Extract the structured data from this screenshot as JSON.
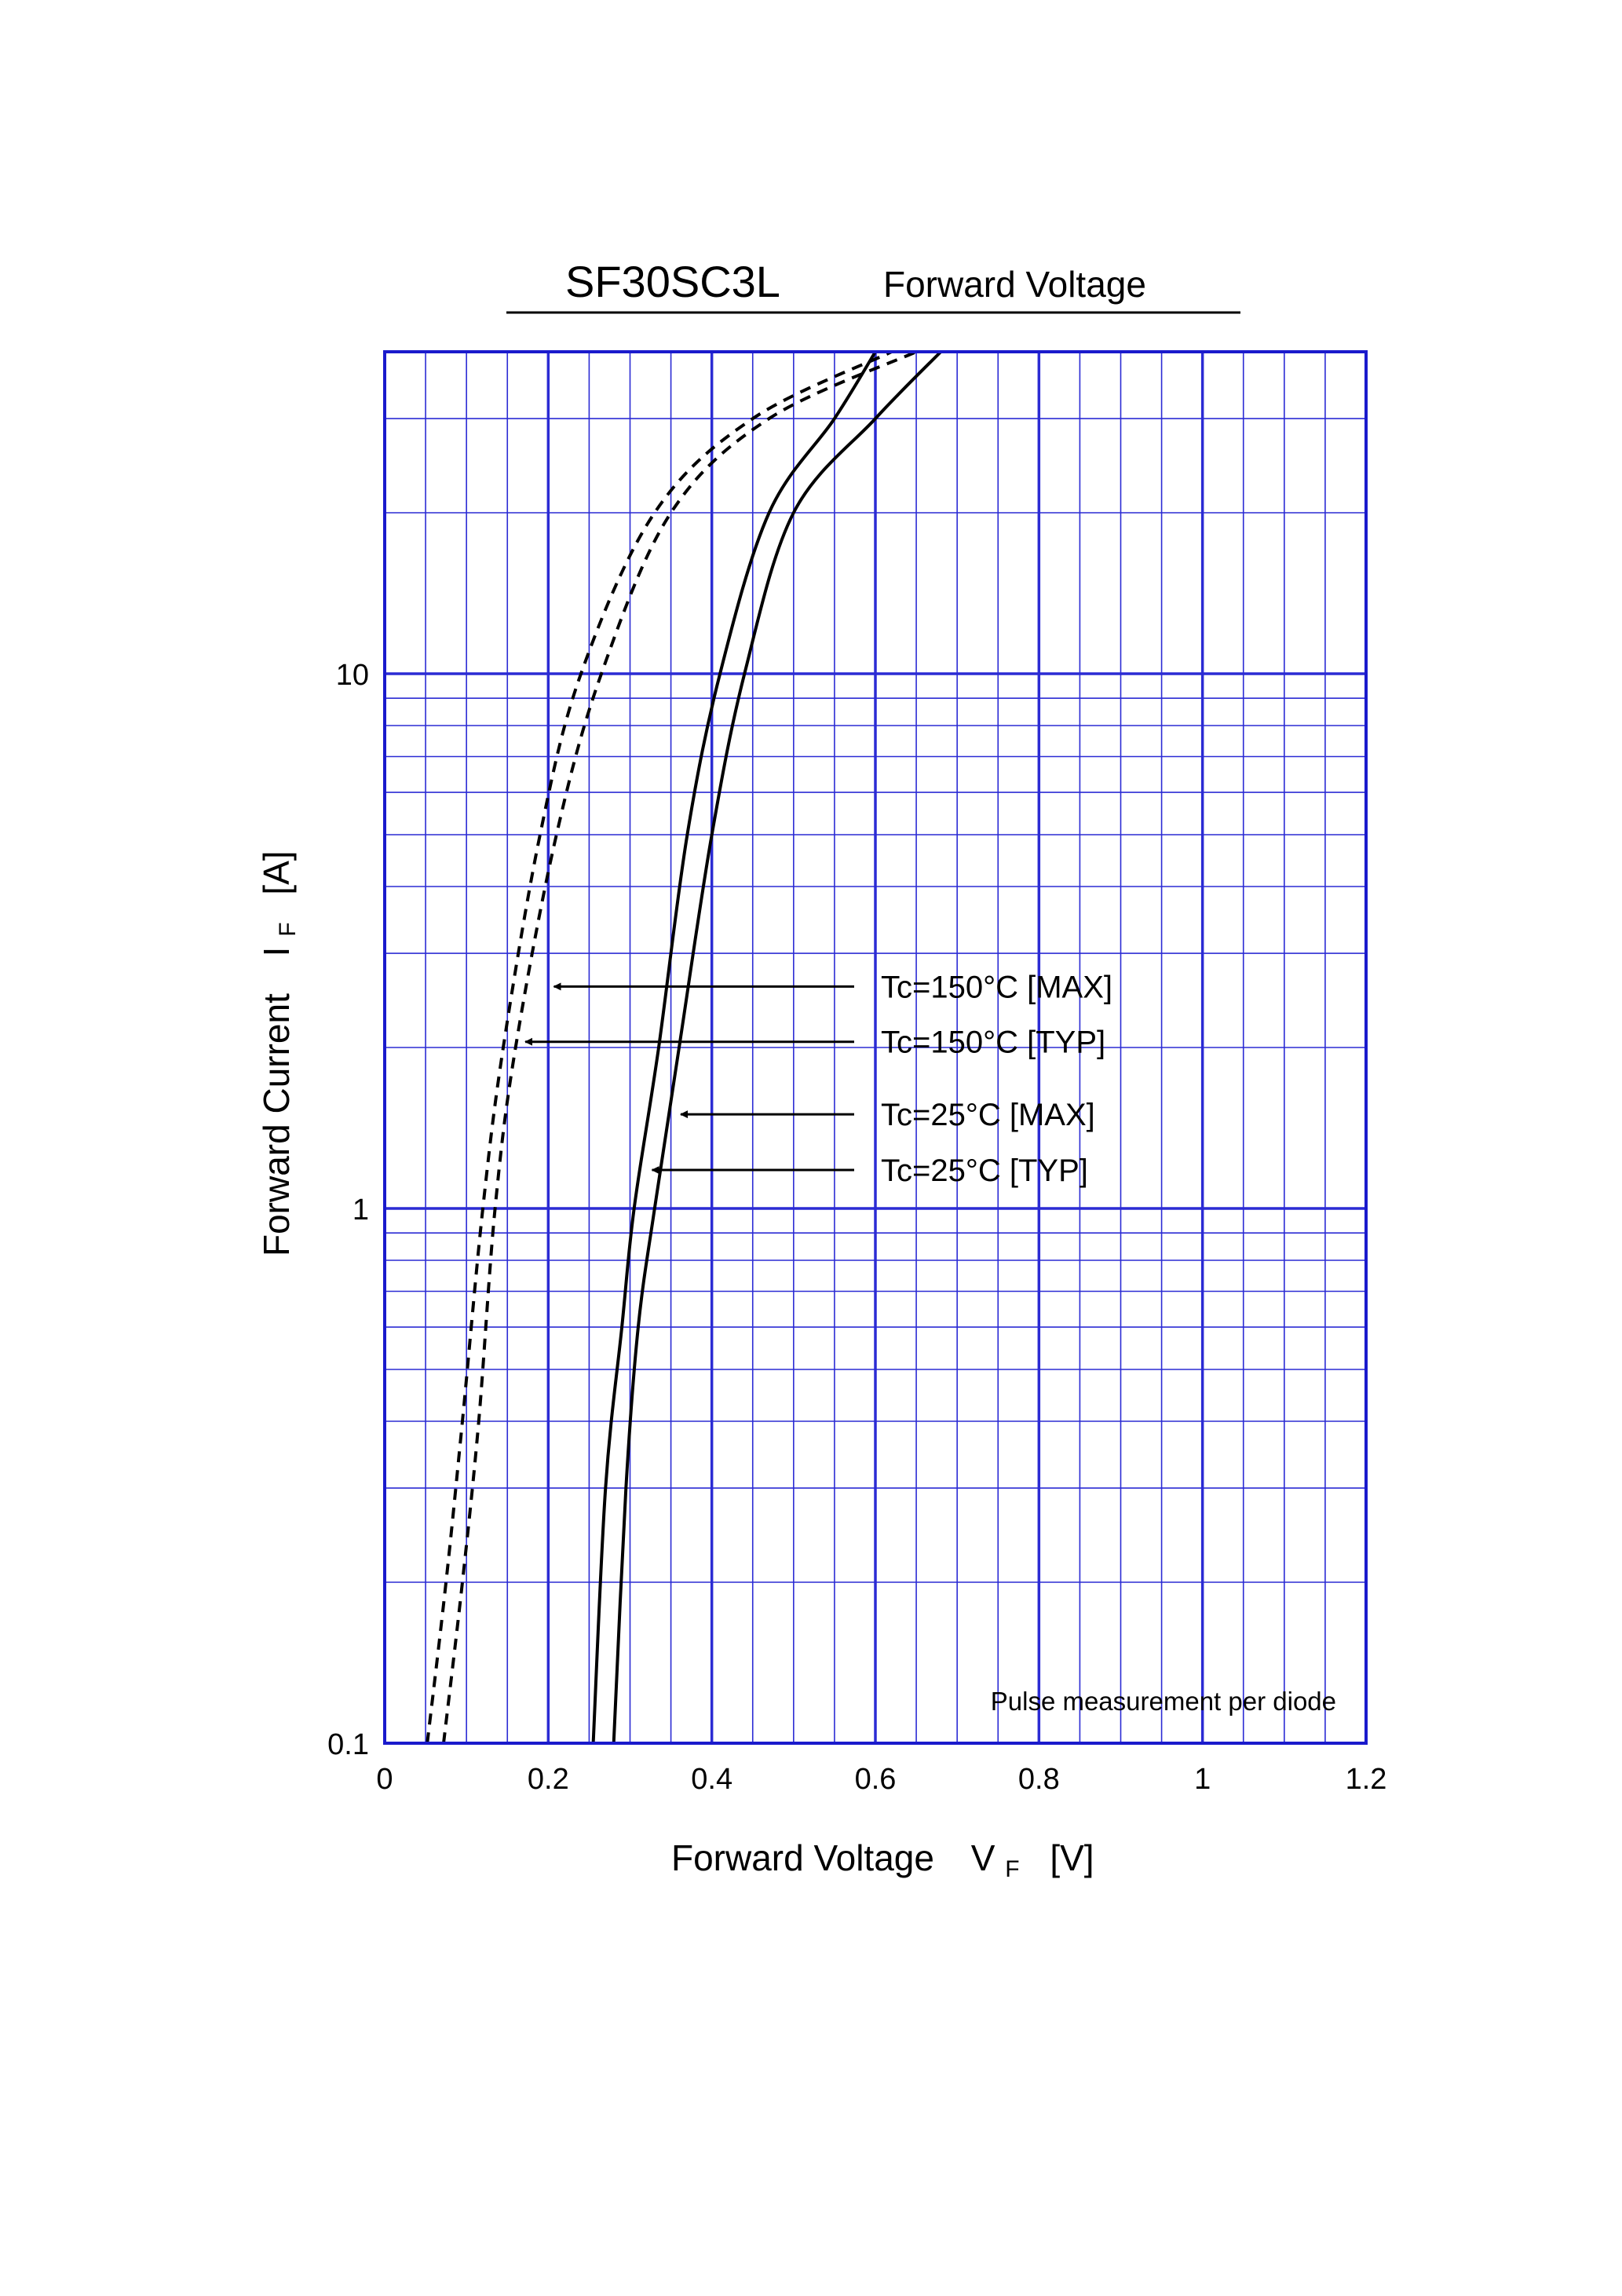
{
  "chart_data": {
    "type": "line",
    "title": "SF30SC3L",
    "subtitle": "Forward Voltage",
    "xlabel": "Forward Voltage",
    "xlabel_sym": "V",
    "xlabel_sub": "F",
    "xlabel_unit": "[V]",
    "ylabel": "Forward Current",
    "ylabel_sym": "I",
    "ylabel_sub": "F",
    "ylabel_unit": "[A]",
    "xlim": [
      0,
      1.2
    ],
    "ylim": [
      0.1,
      40
    ],
    "yscale": "log",
    "grid": true,
    "x_ticks": [
      {
        "v": 0,
        "label": "0"
      },
      {
        "v": 0.2,
        "label": "0.2"
      },
      {
        "v": 0.4,
        "label": "0.4"
      },
      {
        "v": 0.6,
        "label": "0.6"
      },
      {
        "v": 0.8,
        "label": "0.8"
      },
      {
        "v": 1.0,
        "label": "1"
      },
      {
        "v": 1.2,
        "label": "1.2"
      }
    ],
    "y_ticks": [
      {
        "v": 0.1,
        "label": "0.1"
      },
      {
        "v": 1,
        "label": "1"
      },
      {
        "v": 10,
        "label": "10"
      }
    ],
    "note": "Pulse measurement per diode",
    "series": [
      {
        "name": "Tc=150°C [MAX]",
        "style": "dashed",
        "points": [
          [
            0.072,
            0.1
          ],
          [
            0.095,
            0.2
          ],
          [
            0.115,
            0.4
          ],
          [
            0.135,
            1
          ],
          [
            0.16,
            2
          ],
          [
            0.21,
            5
          ],
          [
            0.265,
            10
          ],
          [
            0.35,
            20
          ],
          [
            0.47,
            30
          ],
          [
            0.65,
            40
          ]
        ]
      },
      {
        "name": "Tc=150°C [TYP]",
        "style": "dashed",
        "points": [
          [
            0.052,
            0.1
          ],
          [
            0.075,
            0.2
          ],
          [
            0.095,
            0.4
          ],
          [
            0.12,
            1
          ],
          [
            0.145,
            2
          ],
          [
            0.19,
            5
          ],
          [
            0.24,
            10
          ],
          [
            0.33,
            20
          ],
          [
            0.45,
            30
          ],
          [
            0.62,
            40
          ]
        ]
      },
      {
        "name": "Tc=25°C [MAX]",
        "style": "solid",
        "points": [
          [
            0.28,
            0.1
          ],
          [
            0.295,
            0.3
          ],
          [
            0.31,
            0.6
          ],
          [
            0.33,
            1
          ],
          [
            0.36,
            2
          ],
          [
            0.4,
            5
          ],
          [
            0.44,
            10
          ],
          [
            0.5,
            20
          ],
          [
            0.6,
            30
          ],
          [
            0.68,
            40
          ]
        ]
      },
      {
        "name": "Tc=25°C [TYP]",
        "style": "solid",
        "points": [
          [
            0.255,
            0.1
          ],
          [
            0.27,
            0.3
          ],
          [
            0.29,
            0.6
          ],
          [
            0.305,
            1
          ],
          [
            0.335,
            2
          ],
          [
            0.37,
            5
          ],
          [
            0.41,
            10
          ],
          [
            0.47,
            20
          ],
          [
            0.55,
            30
          ],
          [
            0.6,
            40
          ]
        ]
      }
    ],
    "annotations": [
      {
        "text": "Tc=150°C [MAX]",
        "arrow_to": [
          0.205,
          2.6
        ]
      },
      {
        "text": "Tc=150°C [TYP]",
        "arrow_to": [
          0.17,
          2.05
        ]
      },
      {
        "text": "Tc=25°C [MAX]",
        "arrow_to": [
          0.36,
          1.5
        ]
      },
      {
        "text": "Tc=25°C [TYP]",
        "arrow_to": [
          0.325,
          1.18
        ]
      }
    ]
  }
}
